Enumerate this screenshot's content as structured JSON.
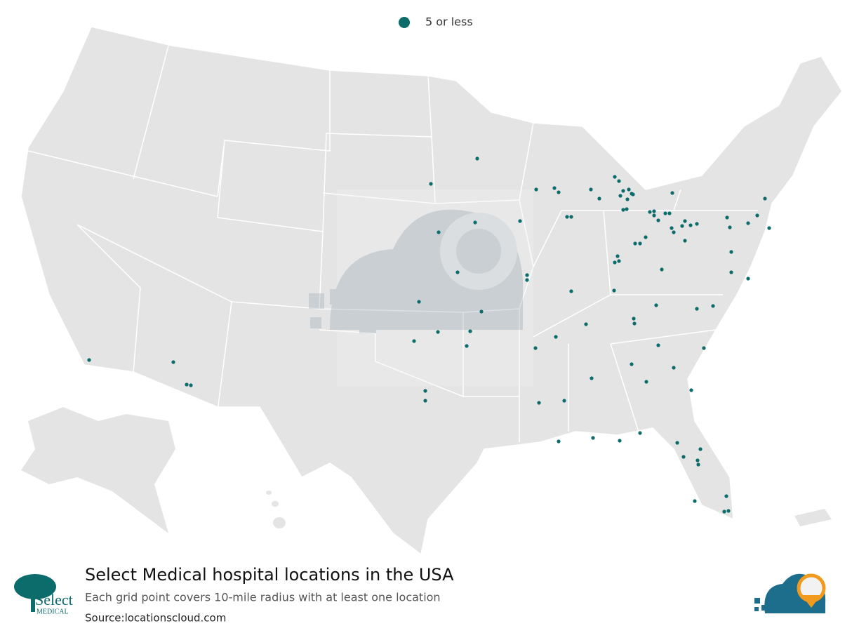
{
  "legend": {
    "label": "5 or less"
  },
  "footer": {
    "title": "Select Medical hospital locations in the USA",
    "subtitle": "Each grid point covers 10-mile radius with at least one location",
    "source": "Source:locationscloud.com"
  },
  "logo": {
    "name": "Select",
    "tagline": "MEDICAL"
  }
}
